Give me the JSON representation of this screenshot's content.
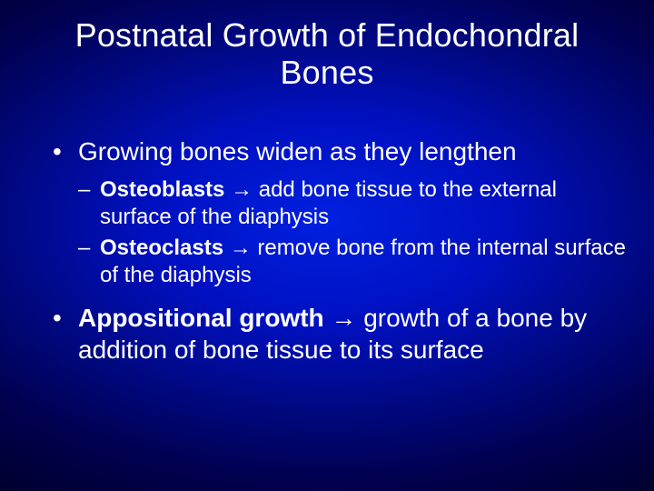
{
  "slide": {
    "type": "infographic",
    "background_gradient": [
      "#0020e0",
      "#0010c0",
      "#000880",
      "#000050",
      "#000028"
    ],
    "text_color": "#ffffff",
    "font_family": "Arial",
    "title": {
      "text": "Postnatal Growth of Endochondral Bones",
      "fontsize": 36,
      "fontweight": 400,
      "align": "center"
    },
    "bullets": [
      {
        "text": "Growing bones widen as they lengthen",
        "fontsize": 28,
        "sub": [
          {
            "bold": "Osteoblasts",
            "arrow": " → ",
            "rest": "add bone tissue to the external surface of the diaphysis",
            "fontsize": 24
          },
          {
            "bold": "Osteoclasts",
            "arrow": " → ",
            "rest": "remove bone from the internal surface of the diaphysis",
            "fontsize": 24
          }
        ]
      },
      {
        "bold": "Appositional growth",
        "arrow": " → ",
        "rest": "growth of a bone by addition of bone tissue to its surface",
        "fontsize": 28
      }
    ]
  }
}
